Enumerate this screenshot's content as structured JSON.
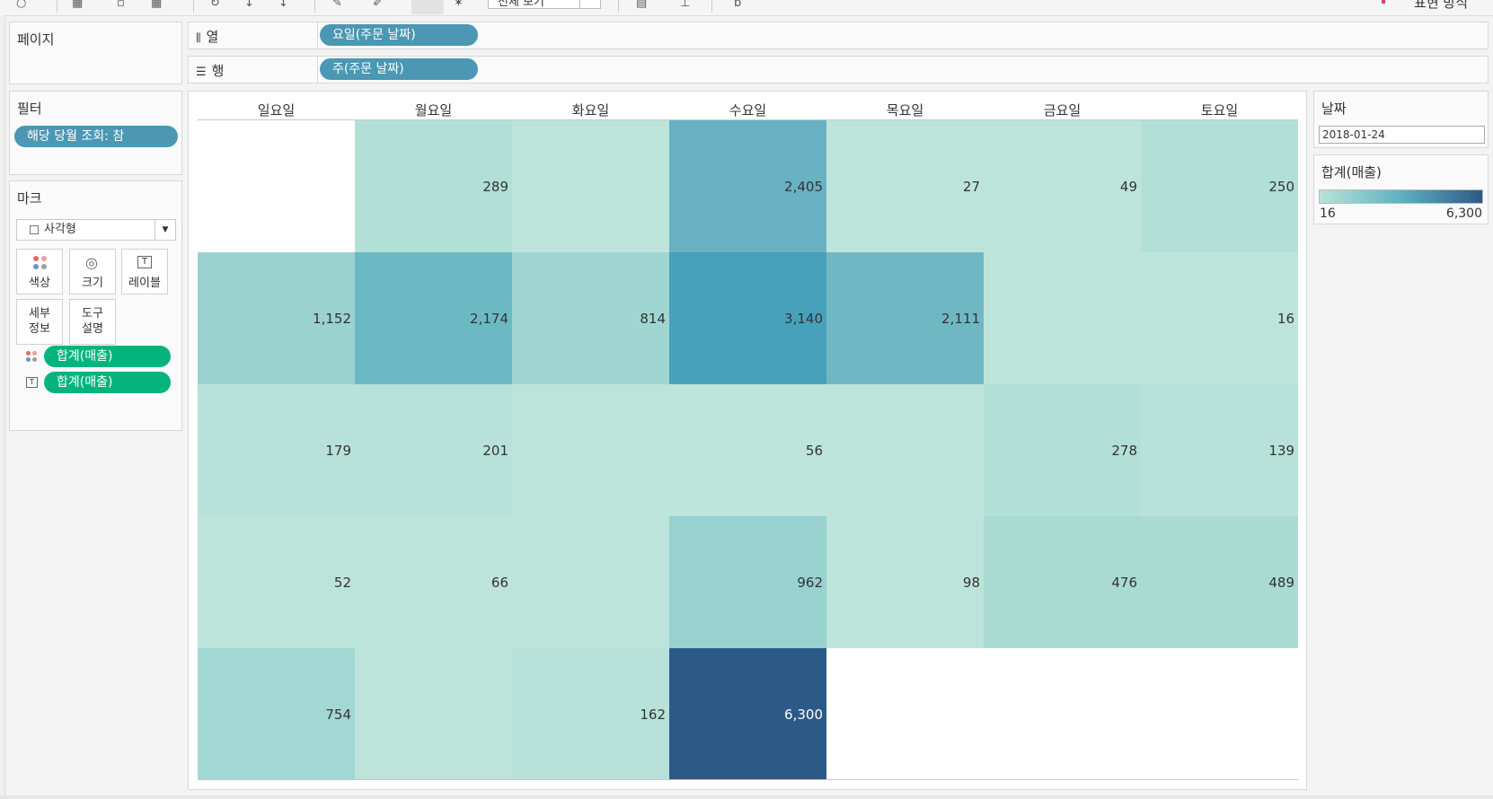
{
  "toolbar": {
    "fit_dropdown": "전체 보기",
    "show_me": "표현 방식"
  },
  "pages": {
    "title": "페이지"
  },
  "filters": {
    "title": "필터",
    "pill": "해당 당월 조회: 참"
  },
  "marks": {
    "title": "마크",
    "mark_type": "사각형",
    "buttons": {
      "color": "색상",
      "size": "크기",
      "label": "레이블",
      "detail": "세부\n정보",
      "tooltip": "도구\n설명"
    },
    "pills": [
      "합계(매출)",
      "합계(매출)"
    ]
  },
  "shelves": {
    "columns_label": "열",
    "columns_pill": "요일(주문 날짜)",
    "rows_label": "행",
    "rows_pill": "주(주문 날짜)"
  },
  "date_param": {
    "title": "날짜",
    "value": "2018-01-24"
  },
  "legend": {
    "title": "합계(매출)",
    "min": "16",
    "max": "6,300"
  },
  "chart_data": {
    "type": "heatmap",
    "x_categories": [
      "일요일",
      "월요일",
      "화요일",
      "수요일",
      "목요일",
      "금요일",
      "토요일"
    ],
    "rows": [
      [
        null,
        289,
        null,
        2405,
        27,
        49,
        250
      ],
      [
        1152,
        2174,
        814,
        3140,
        2111,
        null,
        16
      ],
      [
        179,
        201,
        null,
        56,
        null,
        278,
        139
      ],
      [
        52,
        66,
        null,
        962,
        98,
        476,
        489
      ],
      [
        754,
        null,
        162,
        6300,
        null,
        null,
        null
      ]
    ],
    "labels": [
      [
        "",
        "289",
        "",
        "2,405",
        "27",
        "49",
        "250"
      ],
      [
        "1,152",
        "2,174",
        "814",
        "3,140",
        "2,111",
        "",
        "16"
      ],
      [
        "179",
        "201",
        "",
        "56",
        "",
        "278",
        "139"
      ],
      [
        "52",
        "66",
        "",
        "962",
        "98",
        "476",
        "489"
      ],
      [
        "754",
        "",
        "162",
        "6,300",
        "",
        "",
        ""
      ]
    ],
    "fills": [
      [
        null,
        "#b2e0d7",
        "#bde4da",
        "#68b1c2",
        "#bde4da",
        "#bde4da",
        "#b2e0d7"
      ],
      [
        "#99d2cf",
        "#6cb9c4",
        "#a0d6d2",
        "#48a1ba",
        "#6fb8c3",
        "#bde4da",
        "#bde4da"
      ],
      [
        "#b8e2d9",
        "#b8e2d9",
        "#bde4da",
        "#bde4da",
        "#bde4da",
        "#b2e0d7",
        "#b8e2d9"
      ],
      [
        "#bde4da",
        "#bde4da",
        "#bde4da",
        "#98d1cf",
        "#bde4da",
        "#aadbd3",
        "#aadbd3"
      ],
      [
        "#a2d8d4",
        "#bde4da",
        "#b8e2d9",
        "#2c5a86",
        null,
        null,
        null
      ]
    ],
    "color_scale": {
      "min": 16,
      "max": 6300,
      "low": "#b8e3d8",
      "high": "#2c5a86"
    }
  }
}
